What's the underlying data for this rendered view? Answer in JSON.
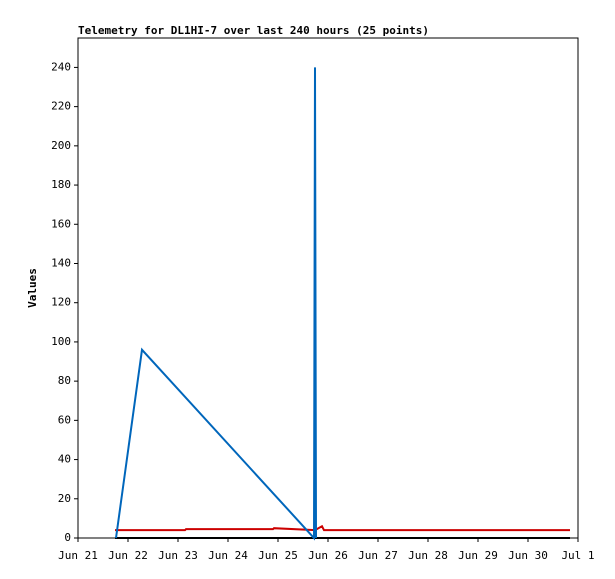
{
  "chart_data": {
    "type": "line",
    "title": "Telemetry for DL1HI-7 over last 240 hours (25 points)",
    "y_label": "Values",
    "xlim": [
      0,
      10
    ],
    "xticks": [
      {
        "value": 0,
        "label": "Jun 21"
      },
      {
        "value": 1,
        "label": "Jun 22"
      },
      {
        "value": 2,
        "label": "Jun 23"
      },
      {
        "value": 3,
        "label": "Jun 24"
      },
      {
        "value": 4,
        "label": "Jun 25"
      },
      {
        "value": 5,
        "label": "Jun 26"
      },
      {
        "value": 6,
        "label": "Jun 27"
      },
      {
        "value": 7,
        "label": "Jun 28"
      },
      {
        "value": 8,
        "label": "Jun 29"
      },
      {
        "value": 9,
        "label": "Jun 30"
      },
      {
        "value": 10,
        "label": "Jul 1"
      }
    ],
    "ylim": [
      0,
      255
    ],
    "yticks": [
      0,
      20,
      40,
      60,
      80,
      100,
      120,
      140,
      160,
      180,
      200,
      220,
      240
    ],
    "grid": false,
    "series": [
      {
        "color": "#cc0000",
        "x": [
          0.74,
          2.14,
          2.16,
          3.9,
          3.92,
          4.74,
          4.88,
          4.92,
          9.84
        ],
        "values": [
          4,
          4,
          4.5,
          4.5,
          5,
          4,
          6,
          4,
          4
        ]
      },
      {
        "color": "#000000",
        "x": [
          0.74,
          9.84
        ],
        "values": [
          0,
          0
        ]
      },
      {
        "color": "#0066bb",
        "x": [
          0.76,
          1.28,
          4.72,
          4.74,
          4.76
        ],
        "values": [
          0,
          96,
          0,
          240,
          0
        ]
      }
    ]
  }
}
